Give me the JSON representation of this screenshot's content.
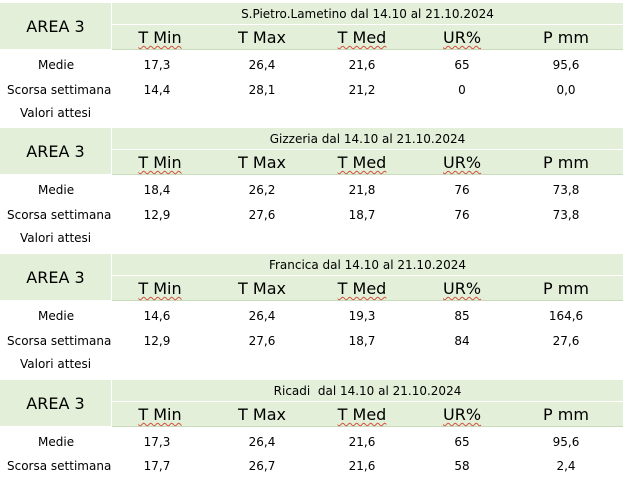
{
  "headers": [
    "T Min",
    "T Max",
    "T Med",
    "UR%",
    "P mm"
  ],
  "row_labels": {
    "medie": "Medie",
    "scorsa": "Scorsa settimana",
    "valori": "Valori attesi"
  },
  "blocks": [
    {
      "area": "AREA 3",
      "title": "S.Pietro.Lametino dal 14.10 al 21.10.2024",
      "medie": [
        "17,3",
        "26,4",
        "21,6",
        "65",
        "95,6"
      ],
      "scorsa": [
        "14,4",
        "28,1",
        "21,2",
        "0",
        "0,0"
      ]
    },
    {
      "area": "AREA 3",
      "title": "Gizzeria dal 14.10 al 21.10.2024",
      "medie": [
        "18,4",
        "26,2",
        "21,8",
        "76",
        "73,8"
      ],
      "scorsa": [
        "12,9",
        "27,6",
        "18,7",
        "76",
        "73,8"
      ]
    },
    {
      "area": "AREA 3",
      "title": "Francica dal 14.10 al 21.10.2024",
      "medie": [
        "14,6",
        "26,4",
        "19,3",
        "85",
        "164,6"
      ],
      "scorsa": [
        "12,9",
        "27,6",
        "18,7",
        "84",
        "27,6"
      ]
    },
    {
      "area": "AREA 3",
      "title": "Ricadi  dal 14.10 al 21.10.2024",
      "medie": [
        "17,3",
        "26,4",
        "21,6",
        "65",
        "95,6"
      ],
      "scorsa": [
        "17,7",
        "26,7",
        "21,6",
        "58",
        "2,4"
      ]
    }
  ],
  "colors": {
    "header_bg": "#e3efd9",
    "spell_underline": "#d0523f"
  }
}
